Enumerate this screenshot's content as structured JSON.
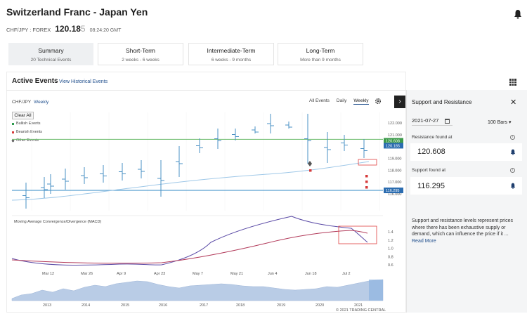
{
  "header": {
    "title": "Switzerland Franc - Japan Yen",
    "pair_code": "CHF/JPY : FOREX",
    "price_main": "120.18",
    "price_dim": "5",
    "time": "08:24:20 GMT"
  },
  "tabs": [
    {
      "title": "Summary",
      "sub": "20 Technical Events",
      "active": true
    },
    {
      "title": "Short-Term",
      "sub": "2 weeks - 6 weeks",
      "active": false
    },
    {
      "title": "Intermediate-Term",
      "sub": "6 weeks - 9 months",
      "active": false
    },
    {
      "title": "Long-Term",
      "sub": "More than 9 months",
      "active": false
    }
  ],
  "events": {
    "heading": "Active Events",
    "view_historical": "View Historical Events",
    "symbol": "CHF/JPY",
    "period": "Weekly",
    "clear_all": "Clear All",
    "legend": [
      {
        "label": "Bullish Events",
        "color": "#2e9b4e"
      },
      {
        "label": "Bearish Events",
        "color": "#d63a3a"
      },
      {
        "label": "Other Events",
        "color": "#555555"
      }
    ],
    "filters": [
      "All Events",
      "Daily",
      "Weekly"
    ],
    "selected_filter": "Weekly"
  },
  "chart_data": {
    "type": "line",
    "price_axis": [
      122.0,
      121.0,
      120.0,
      119.0,
      118.0,
      117.0,
      116.0
    ],
    "price_tags": {
      "close": "120.185",
      "resistance": "120.608",
      "support": "116.295"
    },
    "resistance": 120.608,
    "support": 116.295,
    "x_labels": [
      "Mar 12",
      "Mar 26",
      "Apr 9",
      "Apr 23",
      "May 7",
      "May 21",
      "Jun 4",
      "Jun 18",
      "Jul 2"
    ],
    "macd_title": "Moving Average Convergence/Divergence (MACD)",
    "macd_axis": [
      1.4,
      1.2,
      1.0,
      0.8,
      0.6
    ],
    "history_axis": [
      "2013",
      "2014",
      "2015",
      "2016",
      "2017",
      "2018",
      "2019",
      "2020",
      "2021"
    ],
    "copyright": "© 2021 TRADING CENTRAL"
  },
  "side": {
    "title": "Support and Resistance",
    "date": "2021-07-27",
    "bars": "100 Bars",
    "resistance_label": "Resistance found at",
    "resistance_value": "120.608",
    "support_label": "Support found at",
    "support_value": "116.295",
    "description": "Support and resistance levels represent prices where there has been exhaustive supply or demand, which can influence the price if it ...",
    "read_more": "Read More"
  },
  "colors": {
    "resistance": "#6dbb6d",
    "support": "#5aa0d0",
    "price_bars": "#4a90c4",
    "macd": "#5b4ba6",
    "signal": "#b23a5a",
    "history_fill": "#b9cce6",
    "highlight": "#e04040"
  }
}
